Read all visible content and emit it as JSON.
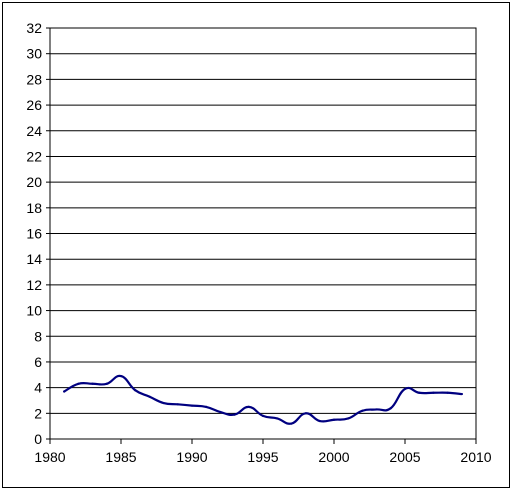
{
  "chart_data": {
    "type": "line",
    "title": "",
    "xlabel": "",
    "ylabel": "",
    "xlim": [
      1980,
      2010
    ],
    "ylim": [
      0,
      32
    ],
    "x_ticks": [
      1980,
      1985,
      1990,
      1995,
      2000,
      2005,
      2010
    ],
    "y_ticks": [
      0,
      2,
      4,
      6,
      8,
      10,
      12,
      14,
      16,
      18,
      20,
      22,
      24,
      26,
      28,
      30,
      32
    ],
    "grid": "horizontal",
    "legend": "none",
    "series": [
      {
        "color": "#000080",
        "x": [
          1981,
          1982,
          1983,
          1984,
          1985,
          1986,
          1987,
          1988,
          1989,
          1990,
          1991,
          1992,
          1993,
          1994,
          1995,
          1996,
          1997,
          1998,
          1999,
          2000,
          2001,
          2002,
          2003,
          2004,
          2005,
          2006,
          2007,
          2008,
          2009
        ],
        "y": [
          3.7,
          4.3,
          4.3,
          4.3,
          4.9,
          3.8,
          3.3,
          2.8,
          2.7,
          2.6,
          2.5,
          2.1,
          1.9,
          2.5,
          1.8,
          1.6,
          1.2,
          2.0,
          1.4,
          1.5,
          1.6,
          2.2,
          2.3,
          2.4,
          3.9,
          3.6,
          3.6,
          3.6,
          3.5
        ]
      }
    ]
  }
}
